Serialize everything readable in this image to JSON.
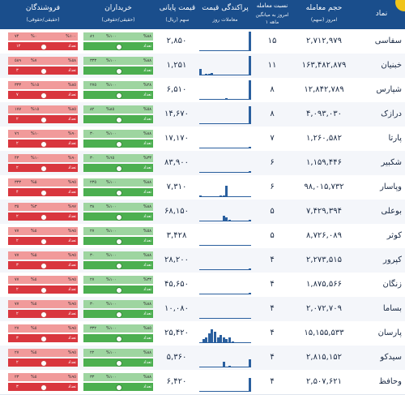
{
  "header": {
    "symbol": "نماد",
    "volume": "حجم معامله",
    "volume_sub": "امروز (سهم)",
    "ratio": "نسبت معامله",
    "ratio_sub1": "امروز به میانگین",
    "ratio_sub2": "۱ ماهه",
    "spread": "پراکندگی قیمت",
    "spread_sub": "معاملات روز",
    "price": "قیمت پایانی",
    "price_sub": "سهم (ریال)",
    "buyers": "خریداران",
    "buyers_sub": "(حقیقی/حقوقی)",
    "sellers": "فروشندگان",
    "sellers_sub": "(حقیقی/حقوقی)"
  },
  "rows": [
    {
      "symbol": "سفاسی",
      "volume": "۲,۷۱۲,۹۷۹",
      "ratio": "۱۵",
      "price": "۲,۸۵۰"
    },
    {
      "symbol": "خبنیان",
      "volume": "۱۶۳,۴۸۲,۸۷۹",
      "ratio": "۱۱",
      "price": "۱,۲۵۱"
    },
    {
      "symbol": "شپارس",
      "volume": "۱۲,۸۴۲,۷۸۹",
      "ratio": "۸",
      "price": "۶,۵۱۰"
    },
    {
      "symbol": "درازک",
      "volume": "۴,۰۹۳,۰۳۰",
      "ratio": "۸",
      "price": "۱۴,۶۷۰"
    },
    {
      "symbol": "پارتا",
      "volume": "۱,۲۶۰,۵۸۲",
      "ratio": "۷",
      "price": "۱۷,۱۷۰"
    },
    {
      "symbol": "شکبیر",
      "volume": "۱,۱۵۹,۴۴۶",
      "ratio": "۶",
      "price": "۸۳,۹۰۰"
    },
    {
      "symbol": "وپاسار",
      "volume": "۹۸,۰۱۵,۷۳۲",
      "ratio": "۶",
      "price": "۷,۳۱۰"
    },
    {
      "symbol": "بوعلی",
      "volume": "۷,۴۲۹,۳۹۴",
      "ratio": "۵",
      "price": "۶۸,۱۵۰"
    },
    {
      "symbol": "کوثر",
      "volume": "۸,۷۲۶,۰۸۹",
      "ratio": "۵",
      "price": "۳,۴۲۸"
    },
    {
      "symbol": "کپرور",
      "volume": "۲,۲۷۳,۵۱۵",
      "ratio": "۴",
      "price": "۲۸,۲۰۰"
    },
    {
      "symbol": "زنگان",
      "volume": "۱,۸۷۵,۵۶۶",
      "ratio": "۴",
      "price": "۴۵,۶۵۰"
    },
    {
      "symbol": "بساما",
      "volume": "۲,۰۷۲,۷۰۹",
      "ratio": "۴",
      "price": "۱۰,۰۸۰"
    },
    {
      "symbol": "پارسان",
      "volume": "۱۵,۱۵۵,۵۳۳",
      "ratio": "۴",
      "price": "۲۵,۴۲۰"
    },
    {
      "symbol": "سیدکو",
      "volume": "۲,۸۱۵,۱۵۲",
      "ratio": "۴",
      "price": "۵,۳۶۰"
    },
    {
      "symbol": "وحافظ",
      "volume": "۲,۵۰۷,۶۲۱",
      "ratio": "۴",
      "price": "۶,۴۲۰"
    }
  ],
  "spread_bars": [
    [
      0,
      0,
      0,
      0,
      0,
      0,
      0,
      0,
      0,
      0,
      0,
      0,
      0,
      0,
      0,
      0,
      0,
      1
    ],
    [
      0.35,
      0.05,
      0.1,
      0.08,
      0.12,
      0.05,
      0.05,
      0.05,
      0,
      0,
      0,
      0,
      0,
      0,
      0,
      0,
      0,
      1
    ],
    [
      0,
      0.05,
      0,
      0,
      0.05,
      0,
      0.05,
      0,
      0.05,
      0.08,
      0.05,
      0.05,
      0.05,
      0,
      0,
      0,
      0,
      1
    ],
    [
      0,
      0.05,
      0.05,
      0.05,
      0,
      0.05,
      0.05,
      0.05,
      0.05,
      0.05,
      0.05,
      0,
      0,
      0,
      0,
      0,
      0,
      0.9
    ],
    [
      0,
      0,
      0,
      0,
      0,
      0,
      0,
      0,
      0,
      0,
      0,
      0,
      0,
      0,
      0,
      0,
      0,
      0.1
    ],
    [
      0,
      0,
      0,
      0,
      0,
      0,
      0,
      0,
      0,
      0.05,
      0,
      0,
      0,
      0,
      0,
      0,
      0,
      0.1
    ],
    [
      0.1,
      0,
      0,
      0,
      0,
      0,
      0,
      0.1,
      0.1,
      0.6,
      0,
      0,
      0,
      0,
      0,
      0,
      0,
      0.05
    ],
    [
      0,
      0,
      0,
      0,
      0,
      0,
      0,
      0,
      0.3,
      0.2,
      0.1,
      0,
      0,
      0,
      0,
      0,
      0,
      0.1
    ],
    [
      0,
      0,
      0,
      0,
      0,
      0,
      0,
      0,
      0,
      0,
      0,
      0,
      0,
      0,
      0,
      0,
      0,
      0.05
    ],
    [
      0,
      0,
      0,
      0,
      0,
      0,
      0,
      0,
      0,
      0,
      0,
      0,
      0,
      0,
      0,
      0,
      0,
      0.1
    ],
    [
      0,
      0,
      0,
      0,
      0,
      0,
      0,
      0,
      0,
      0,
      0,
      0,
      0,
      0,
      0,
      0,
      0,
      0.1
    ],
    [
      0,
      0,
      0,
      0,
      0,
      0,
      0,
      0,
      0,
      0,
      0,
      0,
      0,
      0,
      0,
      0,
      0,
      0.05
    ],
    [
      0.05,
      0.2,
      0.3,
      0.5,
      0.7,
      0.6,
      0.3,
      0.4,
      0.3,
      0.2,
      0.3,
      0.1,
      0,
      0,
      0,
      0,
      0,
      0.05
    ],
    [
      0,
      0,
      0,
      0,
      0,
      0,
      0,
      0,
      0.3,
      0,
      0.1,
      0,
      0,
      0,
      0,
      0,
      0,
      0.4
    ],
    [
      0,
      0,
      0,
      0,
      0,
      0,
      0,
      0,
      0,
      0,
      0,
      0,
      0,
      0,
      0,
      0,
      0,
      0.7
    ]
  ],
  "buyers": [
    {
      "top_r": "%٨٨",
      "top_l": "%١٠٠",
      "top_n": "٨٦",
      "bot_r": "",
      "bot_l": "",
      "bot_n": ""
    },
    {
      "top_r": "%٨٨",
      "top_l": "%١٠٠",
      "top_n": "٣٣٣",
      "bot_r": "",
      "bot_l": "",
      "bot_n": ""
    },
    {
      "top_r": "%٢٨",
      "top_l": "%١٠٠",
      "top_n": "٢٧٥",
      "bot_r": "",
      "bot_l": "",
      "bot_n": ""
    },
    {
      "top_r": "%٥٨",
      "top_l": "%٨٥",
      "top_n": "٨٢",
      "bot_r": "",
      "bot_l": "",
      "bot_n": ""
    },
    {
      "top_r": "%٨٨",
      "top_l": "%١٠٠",
      "top_n": "٣٠",
      "bot_r": "",
      "bot_l": "",
      "bot_n": ""
    },
    {
      "top_r": "%٣٣",
      "top_l": "%٦٥",
      "top_n": "٣٠",
      "bot_r": "",
      "bot_l": "",
      "bot_n": ""
    },
    {
      "top_r": "%٨٨",
      "top_l": "%١٠٠",
      "top_n": "٢٣٥",
      "bot_r": "",
      "bot_l": "",
      "bot_n": ""
    },
    {
      "top_r": "%٨٨",
      "top_l": "%١٠٠",
      "top_n": "٣٨",
      "bot_r": "",
      "bot_l": "",
      "bot_n": ""
    },
    {
      "top_r": "%٥٨",
      "top_l": "%١٠٠",
      "top_n": "٢٧",
      "bot_r": "",
      "bot_l": "",
      "bot_n": ""
    },
    {
      "top_r": "%٨٨",
      "top_l": "%١٠٠",
      "top_n": "٣٠",
      "bot_r": "",
      "bot_l": "",
      "bot_n": ""
    },
    {
      "top_r": "%٣٣",
      "top_l": "%١٠٠",
      "top_n": "٢٧",
      "bot_r": "",
      "bot_l": "",
      "bot_n": ""
    },
    {
      "top_r": "%٨٨",
      "top_l": "%١٠٠",
      "top_n": "٣٠",
      "bot_r": "",
      "bot_l": "",
      "bot_n": ""
    },
    {
      "top_r": "%٨٥",
      "top_l": "%١٠٠",
      "top_n": "٣٣٢",
      "bot_r": "",
      "bot_l": "",
      "bot_n": ""
    },
    {
      "top_r": "%٨٨",
      "top_l": "%١٠٠",
      "top_n": "٢٢",
      "bot_r": "",
      "bot_l": "",
      "bot_n": ""
    },
    {
      "top_r": "%٨٨",
      "top_l": "%١٠٠",
      "top_n": "٣٣",
      "bot_r": "",
      "bot_l": "",
      "bot_n": ""
    }
  ],
  "sellers": [
    {
      "top_r": "%١٠٠",
      "top_l": "%٠",
      "top_n": "٧۴",
      "bot_n": "١٢"
    },
    {
      "top_r": "%٥٨",
      "top_l": "%٧",
      "top_n": "٥٨٩",
      "bot_n": "٣"
    },
    {
      "top_r": "%٨٥",
      "top_l": "%١٥",
      "top_n": "٣٣٣",
      "bot_n": "٧"
    },
    {
      "top_r": "%٨٥",
      "top_l": "%١٥",
      "top_n": "١٧٧",
      "bot_n": "٢"
    },
    {
      "top_r": "%٩٠",
      "top_l": "%١٠",
      "top_n": "٧٦",
      "bot_n": "٢"
    },
    {
      "top_r": "%٩٠",
      "top_l": "%١٠",
      "top_n": "۴٣",
      "bot_n": "٢"
    },
    {
      "top_r": "%٩٥",
      "top_l": "%۵",
      "top_n": "٣٣٣",
      "bot_n": "۴"
    },
    {
      "top_r": "%٩٧",
      "top_l": "%٣",
      "top_n": "٣٥",
      "bot_n": "٢"
    },
    {
      "top_r": "%٩٥",
      "top_l": "%٥",
      "top_n": "٧٧",
      "bot_n": "٢"
    },
    {
      "top_r": "%٩٥",
      "top_l": "%۵",
      "top_n": "٧٧",
      "bot_n": "٣"
    },
    {
      "top_r": "%٩٥",
      "top_l": "%٥",
      "top_n": "٧٧",
      "bot_n": "٢"
    },
    {
      "top_r": "%٩٥",
      "top_l": "%٥",
      "top_n": "٧٧",
      "bot_n": "٢"
    },
    {
      "top_r": "%٩٥",
      "top_l": "%٥",
      "top_n": "٢٧",
      "bot_n": "٣"
    },
    {
      "top_r": "%٩٥",
      "top_l": "%٥",
      "top_n": "٢٧",
      "bot_n": "٢"
    },
    {
      "top_r": "%٩٥",
      "top_l": "%٥",
      "top_n": "٢٣",
      "bot_n": "٣"
    }
  ],
  "labels": {
    "volume_word": "حجم",
    "count_word": "تعداد"
  },
  "colors": {
    "header": "#1a4e8c",
    "buy_light": "#9ed5a0",
    "buy_dark": "#4caf50",
    "sell_light": "#f19a9a",
    "sell_dark": "#d9363e",
    "bar": "#2a5f9e"
  }
}
